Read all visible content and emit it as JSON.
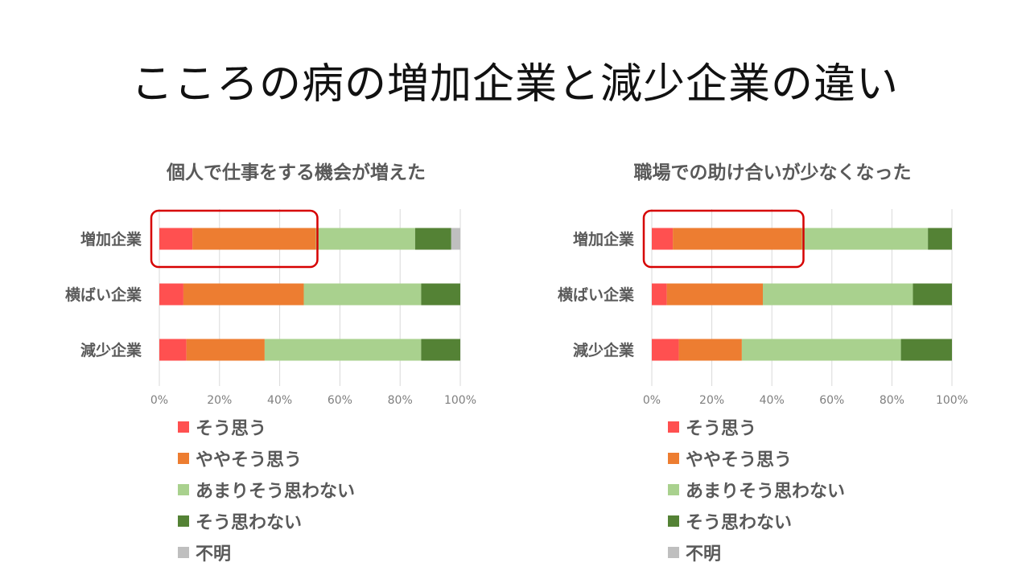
{
  "slide": {
    "title": "こころの病の増加企業と減少企業の違い"
  },
  "colors": {
    "strongly_agree": "#FF5050",
    "somewhat_agree": "#ED7D31",
    "not_really": "#A9D18E",
    "disagree": "#548235",
    "unknown": "#BFBFBF",
    "highlight": "#D60000"
  },
  "chart_data": [
    {
      "type": "bar",
      "orientation": "horizontal",
      "stacked": "percent",
      "title": "個人で仕事をする機会が増えた",
      "categories": [
        "増加企業",
        "横ばい企業",
        "減少企業"
      ],
      "series": [
        {
          "name": "そう思う",
          "values": [
            11,
            8,
            9
          ]
        },
        {
          "name": "ややそう思う",
          "values": [
            41,
            40,
            26
          ]
        },
        {
          "name": "あまりそう思わない",
          "values": [
            33,
            39,
            52
          ]
        },
        {
          "name": "そう思わない",
          "values": [
            12,
            13,
            13
          ]
        },
        {
          "name": "不明",
          "values": [
            3,
            0,
            0
          ]
        }
      ],
      "xlim": [
        0,
        100
      ],
      "x_ticks": [
        "0%",
        "20%",
        "40%",
        "60%",
        "80%",
        "100%"
      ],
      "grid": true,
      "legend_position": "bottom",
      "highlight": {
        "category": "増加企業",
        "range": [
          0,
          52
        ]
      }
    },
    {
      "type": "bar",
      "orientation": "horizontal",
      "stacked": "percent",
      "title": "職場での助け合いが少なくなった",
      "categories": [
        "増加企業",
        "横ばい企業",
        "減少企業"
      ],
      "series": [
        {
          "name": "そう思う",
          "values": [
            7,
            5,
            9
          ]
        },
        {
          "name": "ややそう思う",
          "values": [
            43,
            32,
            21
          ]
        },
        {
          "name": "あまりそう思わない",
          "values": [
            42,
            50,
            53
          ]
        },
        {
          "name": "そう思わない",
          "values": [
            8,
            13,
            17
          ]
        },
        {
          "name": "不明",
          "values": [
            0,
            0,
            0
          ]
        }
      ],
      "xlim": [
        0,
        100
      ],
      "x_ticks": [
        "0%",
        "20%",
        "40%",
        "60%",
        "80%",
        "100%"
      ],
      "grid": true,
      "legend_position": "bottom",
      "highlight": {
        "category": "増加企業",
        "range": [
          0,
          50
        ]
      }
    }
  ]
}
